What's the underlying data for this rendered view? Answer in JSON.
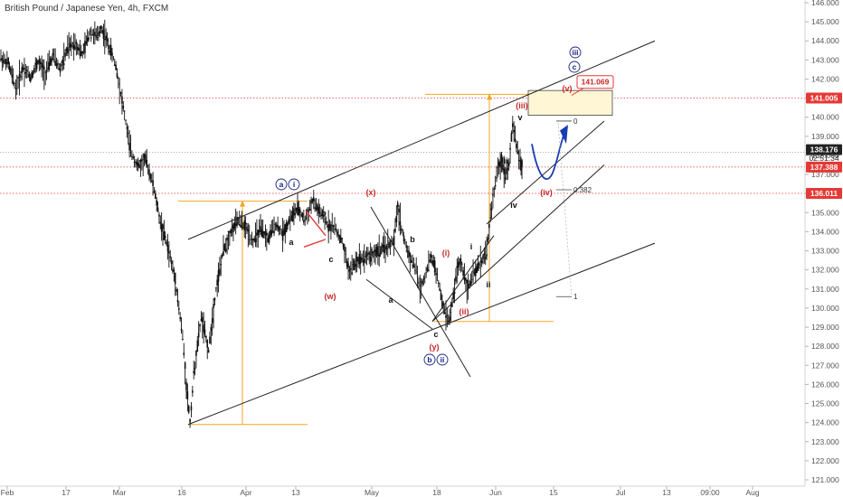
{
  "chart": {
    "title": "British Pound / Japanese Yen, 4h, FXCM"
  },
  "chart_data": {
    "type": "candlestick",
    "title": "British Pound / Japanese Yen, 4h, FXCM",
    "ylim": [
      121.0,
      146.0
    ],
    "y_ticks": [
      "146.000",
      "145.000",
      "144.000",
      "143.000",
      "142.000",
      "141.000",
      "140.000",
      "139.000",
      "138.000",
      "137.000",
      "136.000",
      "135.000",
      "134.000",
      "133.000",
      "132.000",
      "131.000",
      "130.000",
      "129.000",
      "128.000",
      "127.000",
      "126.000",
      "125.000",
      "124.000",
      "123.000",
      "122.000",
      "121.000"
    ],
    "x_ticks": [
      "Feb",
      "17",
      "Mar",
      "16",
      "Apr",
      "13",
      "May",
      "18",
      "Jun",
      "15",
      "Jul",
      "13",
      "09:00",
      "Aug"
    ],
    "price_path": [
      [
        0,
        143.1
      ],
      [
        2,
        142.8
      ],
      [
        4,
        141.5
      ],
      [
        6,
        142.6
      ],
      [
        8,
        142.1
      ],
      [
        10,
        142.9
      ],
      [
        12,
        142.3
      ],
      [
        14,
        143.2
      ],
      [
        16,
        142.5
      ],
      [
        18,
        143.6
      ],
      [
        20,
        143.9
      ],
      [
        22,
        143.3
      ],
      [
        24,
        144.5
      ],
      [
        26,
        144.2
      ],
      [
        27,
        144.7
      ],
      [
        29,
        143.8
      ],
      [
        31,
        142.7
      ],
      [
        33,
        140.5
      ],
      [
        35,
        138.2
      ],
      [
        37,
        137.4
      ],
      [
        39,
        137.8
      ],
      [
        41,
        136.5
      ],
      [
        43,
        134.5
      ],
      [
        45,
        133.2
      ],
      [
        47,
        131.5
      ],
      [
        48,
        130.0
      ],
      [
        49,
        128.5
      ],
      [
        50,
        126.0
      ],
      [
        51,
        124.0
      ],
      [
        52,
        126.5
      ],
      [
        54,
        129.5
      ],
      [
        56,
        127.8
      ],
      [
        58,
        131.0
      ],
      [
        60,
        133.0
      ],
      [
        62,
        134.0
      ],
      [
        64,
        134.6
      ],
      [
        66,
        134.2
      ],
      [
        68,
        133.5
      ],
      [
        70,
        134.1
      ],
      [
        72,
        133.6
      ],
      [
        74,
        134.4
      ],
      [
        76,
        133.9
      ],
      [
        78,
        134.7
      ],
      [
        80,
        135.2
      ],
      [
        82,
        134.6
      ],
      [
        84,
        135.6
      ],
      [
        86,
        135.0
      ],
      [
        88,
        134.4
      ],
      [
        90,
        134.2
      ],
      [
        92,
        133.5
      ],
      [
        93,
        132.6
      ],
      [
        94,
        131.9
      ],
      [
        96,
        132.5
      ],
      [
        98,
        132.7
      ],
      [
        100,
        132.8
      ],
      [
        102,
        133.0
      ],
      [
        104,
        133.2
      ],
      [
        106,
        133.5
      ],
      [
        107,
        135.3
      ],
      [
        108,
        134.2
      ],
      [
        109,
        133.4
      ],
      [
        110,
        132.8
      ],
      [
        112,
        132.0
      ],
      [
        113,
        131.0
      ],
      [
        114,
        131.5
      ],
      [
        116,
        132.7
      ],
      [
        117,
        132.2
      ],
      [
        118,
        131.3
      ],
      [
        119,
        130.3
      ],
      [
        120,
        129.6
      ],
      [
        121,
        129.4
      ],
      [
        122,
        130.6
      ],
      [
        123,
        132.0
      ],
      [
        124,
        132.4
      ],
      [
        125,
        131.7
      ],
      [
        126,
        131.0
      ],
      [
        127,
        131.6
      ],
      [
        128,
        131.9
      ],
      [
        129,
        132.3
      ],
      [
        130,
        132.6
      ],
      [
        131,
        133.0
      ],
      [
        132,
        134.8
      ],
      [
        133,
        136.2
      ],
      [
        134,
        137.2
      ],
      [
        135,
        137.8
      ],
      [
        136,
        137.0
      ],
      [
        137,
        137.6
      ],
      [
        138,
        139.6
      ],
      [
        139,
        138.5
      ],
      [
        140,
        137.7
      ],
      [
        140.5,
        137.4
      ]
    ],
    "current_price": "138.176",
    "countdown": "02:51:34",
    "price_labels": [
      "141.069",
      "141.005",
      "137.388",
      "136.011"
    ],
    "fib_levels": [
      {
        "label": "0",
        "value": 139.8
      },
      {
        "label": "0.382",
        "value": 136.2
      },
      {
        "label": "1",
        "value": 130.6
      }
    ],
    "wave_labels": [
      {
        "text": "a",
        "color": "#1a237e",
        "circled": true
      },
      {
        "text": "i",
        "color": "#1a237e",
        "circled": true
      },
      {
        "text": "b",
        "color": "#1a237e",
        "circled": true
      },
      {
        "text": "ii",
        "color": "#1a237e",
        "circled": true
      },
      {
        "text": "c",
        "color": "#1a237e",
        "circled": true
      },
      {
        "text": "iii",
        "color": "#1a237e",
        "circled": true
      },
      {
        "text": "a",
        "color": "#111111",
        "circled": false
      },
      {
        "text": "b",
        "color": "#111111",
        "circled": false
      },
      {
        "text": "c",
        "color": "#111111",
        "circled": false
      },
      {
        "text": "a",
        "color": "#111111",
        "circled": false
      },
      {
        "text": "b",
        "color": "#111111",
        "circled": false
      },
      {
        "text": "c",
        "color": "#111111",
        "circled": false
      },
      {
        "text": "i",
        "color": "#111111",
        "circled": false
      },
      {
        "text": "ii",
        "color": "#111111",
        "circled": false
      },
      {
        "text": "iii",
        "color": "#111111",
        "circled": false
      },
      {
        "text": "iv",
        "color": "#111111",
        "circled": false
      },
      {
        "text": "v",
        "color": "#111111",
        "circled": false
      },
      {
        "text": "(w)",
        "color": "#c62828",
        "circled": false
      },
      {
        "text": "(x)",
        "color": "#c62828",
        "circled": false
      },
      {
        "text": "(y)",
        "color": "#c62828",
        "circled": false
      },
      {
        "text": "(i)",
        "color": "#c62828",
        "circled": false
      },
      {
        "text": "(ii)",
        "color": "#c62828",
        "circled": false
      },
      {
        "text": "(iii)",
        "color": "#c62828",
        "circled": false
      },
      {
        "text": "(iv)",
        "color": "#c62828",
        "circled": false
      },
      {
        "text": "(v)",
        "color": "#c62828",
        "circled": false
      }
    ],
    "colors": {
      "price": "#111111",
      "red_label": "#c62828",
      "blue_label": "#1a237e",
      "orange": "#f5a623",
      "red_line": "#e53935",
      "projection": "#1a3bb3"
    }
  }
}
